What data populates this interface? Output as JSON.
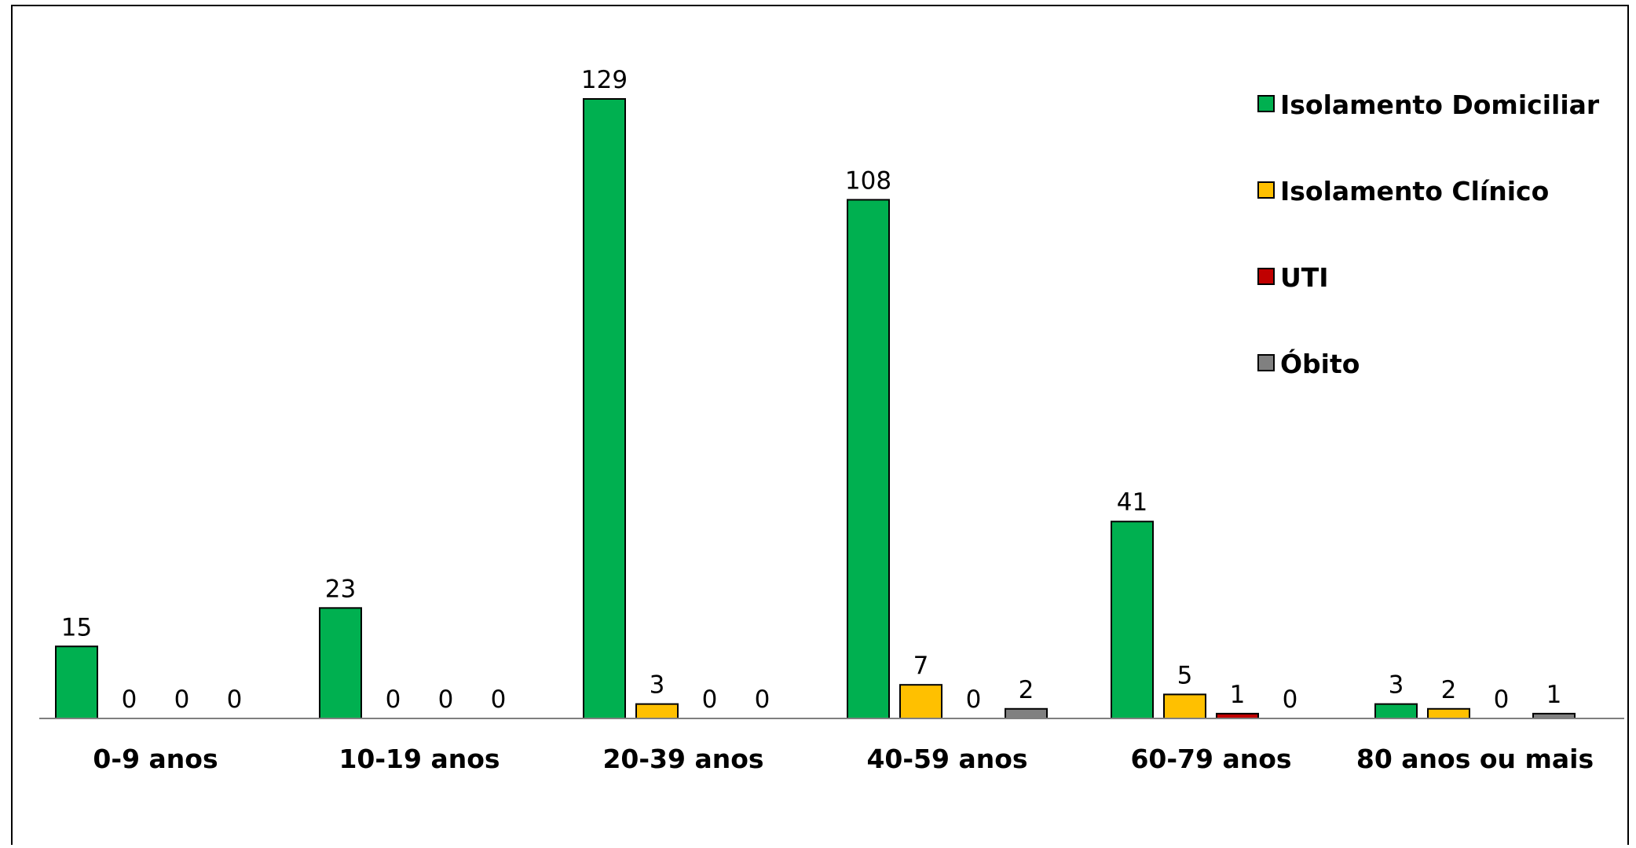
{
  "chart_data": {
    "type": "bar",
    "categories": [
      "0-9 anos",
      "10-19 anos",
      "20-39 anos",
      "40-59 anos",
      "60-79 anos",
      "80 anos ou mais"
    ],
    "series": [
      {
        "name": "Isolamento Domiciliar",
        "color": "#00B050",
        "values": [
          15,
          23,
          129,
          108,
          41,
          3
        ]
      },
      {
        "name": "Isolamento Clínico",
        "color": "#FFC000",
        "values": [
          0,
          0,
          3,
          7,
          5,
          2
        ]
      },
      {
        "name": "UTI",
        "color": "#C00000",
        "values": [
          0,
          0,
          0,
          0,
          1,
          0
        ]
      },
      {
        "name": "Óbito",
        "color": "#808080",
        "values": [
          0,
          0,
          0,
          2,
          0,
          1
        ]
      }
    ],
    "ylim": [
      0,
      129
    ],
    "grid": false,
    "legend_position": "right",
    "data_labels": true
  }
}
